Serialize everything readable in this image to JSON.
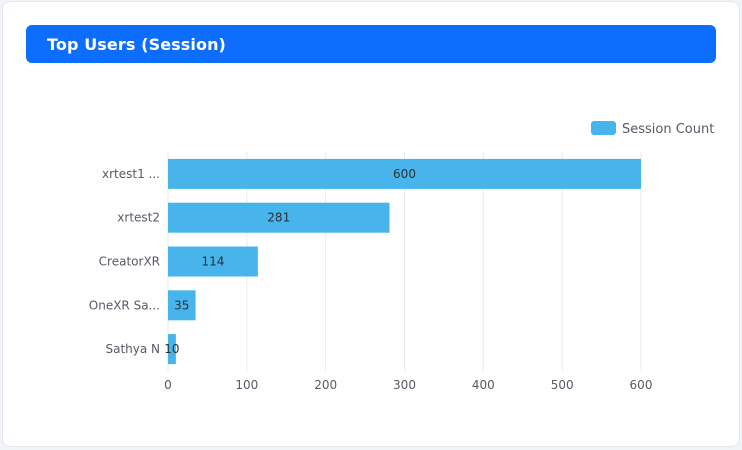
{
  "header": {
    "title": "Top Users (Session)"
  },
  "colors": {
    "header_bg": "#0d6efd",
    "bar": "#47b5ec",
    "grid": "#e6e8ef",
    "label_text": "#555a66"
  },
  "chart_data": {
    "type": "bar",
    "orientation": "horizontal",
    "categories": [
      "xrtest1 ...",
      "xrtest2",
      "CreatorXR",
      "OneXR Sa...",
      "Sathya N"
    ],
    "series": [
      {
        "name": "Session Count",
        "values": [
          600,
          281,
          114,
          35,
          10
        ]
      }
    ],
    "x_ticks": [
      "0",
      "100",
      "200",
      "300",
      "400",
      "500",
      "600"
    ],
    "xlim": [
      0,
      600
    ],
    "grid": true,
    "legend": "top-right"
  }
}
